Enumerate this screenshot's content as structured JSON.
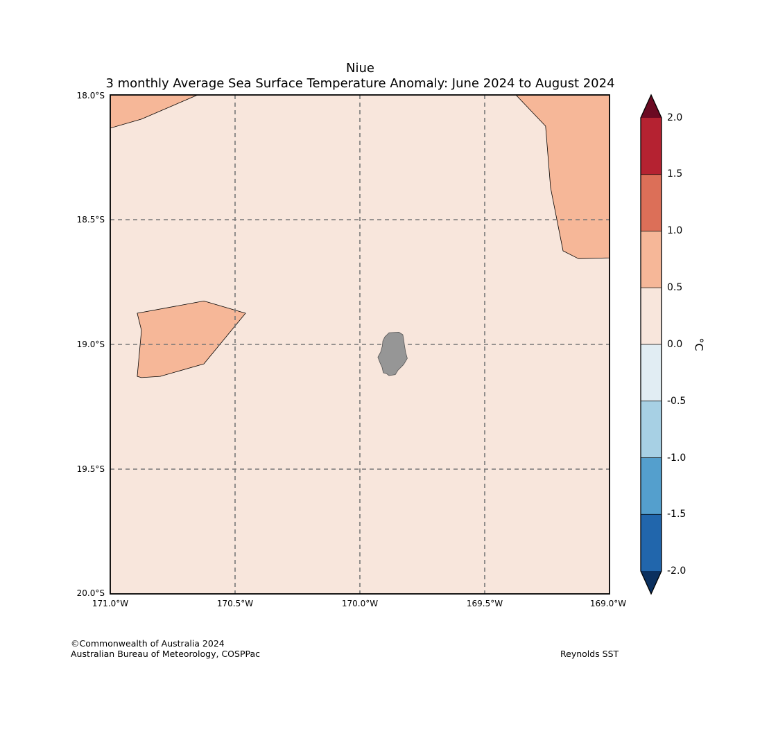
{
  "title": {
    "line1": "Niue",
    "line2": "3 monthly Average Sea Surface Temperature Anomaly: June 2024 to August 2024"
  },
  "map": {
    "lon_range": [
      -171.0,
      -169.0
    ],
    "lat_range": [
      -20.0,
      -18.0
    ],
    "projection": "plate-carree",
    "gridlines": "dashed",
    "land_color": "#969696",
    "background_anomaly_color": "#f8e6dc",
    "regions": [
      {
        "name": "anomaly-0.5-1.0-northwest",
        "color": "#f6b798",
        "coords": [
          [
            -171.0,
            -18.0
          ],
          [
            -170.65,
            -18.0
          ],
          [
            -170.875,
            -18.097
          ],
          [
            -171.0,
            -18.133
          ]
        ]
      },
      {
        "name": "anomaly-0.5-1.0-northeast",
        "color": "#f6b798",
        "coords": [
          [
            -169.375,
            -18.0
          ],
          [
            -169.0,
            -18.0
          ],
          [
            -169.0,
            -18.653
          ],
          [
            -169.125,
            -18.656
          ],
          [
            -169.186,
            -18.625
          ],
          [
            -169.236,
            -18.372
          ],
          [
            -169.256,
            -18.125
          ]
        ]
      },
      {
        "name": "anomaly-0.5-1.0-west",
        "color": "#f6b798",
        "coords": [
          [
            -170.892,
            -18.875
          ],
          [
            -170.625,
            -18.826
          ],
          [
            -170.458,
            -18.875
          ],
          [
            -170.625,
            -19.078
          ],
          [
            -170.8,
            -19.128
          ],
          [
            -170.875,
            -19.133
          ],
          [
            -170.892,
            -19.128
          ],
          [
            -170.875,
            -18.944
          ]
        ]
      }
    ],
    "island": {
      "name": "Niue",
      "coords": [
        [
          -169.883,
          -18.953
        ],
        [
          -169.844,
          -18.951
        ],
        [
          -169.828,
          -18.961
        ],
        [
          -169.825,
          -18.978
        ],
        [
          -169.822,
          -19.0
        ],
        [
          -169.817,
          -19.031
        ],
        [
          -169.81,
          -19.056
        ],
        [
          -169.825,
          -19.081
        ],
        [
          -169.847,
          -19.103
        ],
        [
          -169.858,
          -19.121
        ],
        [
          -169.883,
          -19.125
        ],
        [
          -169.894,
          -19.117
        ],
        [
          -169.906,
          -19.114
        ],
        [
          -169.911,
          -19.092
        ],
        [
          -169.92,
          -19.072
        ],
        [
          -169.928,
          -19.051
        ],
        [
          -169.917,
          -19.031
        ],
        [
          -169.91,
          -19.006
        ],
        [
          -169.908,
          -18.986
        ],
        [
          -169.9,
          -18.97
        ]
      ]
    },
    "lat_ticks": [
      "18.0°S",
      "18.5°S",
      "19.0°S",
      "19.5°S",
      "20.0°S"
    ],
    "lon_ticks": [
      "171.0°W",
      "170.5°W",
      "170.0°W",
      "169.5°W",
      "169.0°W"
    ]
  },
  "colorbar": {
    "unit": "°C",
    "min": -2.0,
    "max": 2.0,
    "extend": "both",
    "tick_labels": [
      "2.0",
      "1.5",
      "1.0",
      "0.5",
      "0.0",
      "-0.5",
      "-1.0",
      "-1.5",
      "-2.0"
    ],
    "bins": [
      {
        "from": 1.5,
        "to": 2.0,
        "color": "#b52231"
      },
      {
        "from": 1.0,
        "to": 1.5,
        "color": "#dc6f58"
      },
      {
        "from": 0.5,
        "to": 1.0,
        "color": "#f6b798"
      },
      {
        "from": 0.0,
        "to": 0.5,
        "color": "#f8e6dc"
      },
      {
        "from": -0.5,
        "to": 0.0,
        "color": "#e1edf3"
      },
      {
        "from": -1.0,
        "to": -0.5,
        "color": "#a7d0e4"
      },
      {
        "from": -1.5,
        "to": -1.0,
        "color": "#549fcd"
      },
      {
        "from": -2.0,
        "to": -1.5,
        "color": "#2166ac"
      }
    ],
    "over_color": "#6b0a22",
    "under_color": "#0b305f"
  },
  "footer": {
    "copyright": "©Commonwealth of Australia 2024",
    "org": "Australian Bureau of Meteorology, COSPPac",
    "source": "Reynolds SST"
  }
}
